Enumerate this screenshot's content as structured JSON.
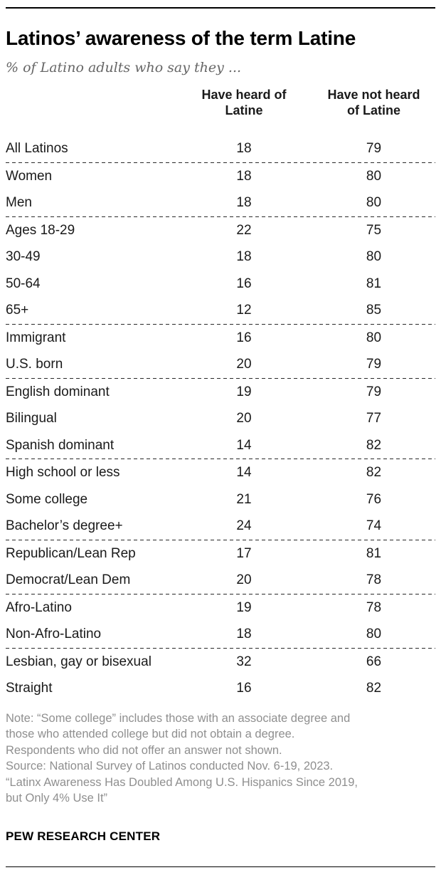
{
  "chart_data": {
    "type": "table",
    "title": "Latinos’ awareness of the term Latine",
    "subtitle": "% of Latino adults who say they ...",
    "columns": [
      "Have heard of Latine",
      "Have not heard of Latine"
    ],
    "columns_display": [
      "Have heard of\nLatine",
      "Have not heard\nof Latine"
    ],
    "groups": [
      {
        "rows": [
          {
            "label": "All Latinos",
            "values": [
              18,
              79
            ]
          }
        ]
      },
      {
        "rows": [
          {
            "label": "Women",
            "values": [
              18,
              80
            ]
          },
          {
            "label": "Men",
            "values": [
              18,
              80
            ]
          }
        ]
      },
      {
        "rows": [
          {
            "label": "Ages 18-29",
            "values": [
              22,
              75
            ]
          },
          {
            "label": "30-49",
            "values": [
              18,
              80
            ]
          },
          {
            "label": "50-64",
            "values": [
              16,
              81
            ]
          },
          {
            "label": "65+",
            "values": [
              12,
              85
            ]
          }
        ]
      },
      {
        "rows": [
          {
            "label": "Immigrant",
            "values": [
              16,
              80
            ]
          },
          {
            "label": "U.S. born",
            "values": [
              20,
              79
            ]
          }
        ]
      },
      {
        "rows": [
          {
            "label": "English dominant",
            "values": [
              19,
              79
            ]
          },
          {
            "label": "Bilingual",
            "values": [
              20,
              77
            ]
          },
          {
            "label": "Spanish dominant",
            "values": [
              14,
              82
            ]
          }
        ]
      },
      {
        "rows": [
          {
            "label": "High school or less",
            "values": [
              14,
              82
            ]
          },
          {
            "label": "Some college",
            "values": [
              21,
              76
            ]
          },
          {
            "label": "Bachelor’s degree+",
            "values": [
              24,
              74
            ]
          }
        ]
      },
      {
        "rows": [
          {
            "label": "Republican/Lean Rep",
            "values": [
              17,
              81
            ]
          },
          {
            "label": "Democrat/Lean Dem",
            "values": [
              20,
              78
            ]
          }
        ]
      },
      {
        "rows": [
          {
            "label": "Afro-Latino",
            "values": [
              19,
              78
            ]
          },
          {
            "label": "Non-Afro-Latino",
            "values": [
              18,
              80
            ]
          }
        ]
      },
      {
        "rows": [
          {
            "label": "Lesbian, gay or bisexual",
            "values": [
              32,
              66
            ]
          },
          {
            "label": "Straight",
            "values": [
              16,
              82
            ]
          }
        ]
      }
    ],
    "notes_lines": [
      "Note: “Some college” includes those with an associate degree and",
      "those who attended college but did not obtain a degree.",
      "Respondents who did not offer an answer not shown.",
      "Source: National Survey of Latinos conducted Nov. 6-19, 2023.",
      "“Latinx Awareness Has Doubled Among U.S. Hispanics Since 2019,",
      "but Only 4% Use It”"
    ],
    "brand": "PEW RESEARCH CENTER",
    "layout": {
      "grid": "off",
      "legend": "none"
    },
    "colors": {
      "title_text": "#000000",
      "body_text": "#1a1a1a",
      "subtitle_text": "#666666",
      "note_text": "#8f8f8f",
      "rule": "#000000"
    }
  }
}
